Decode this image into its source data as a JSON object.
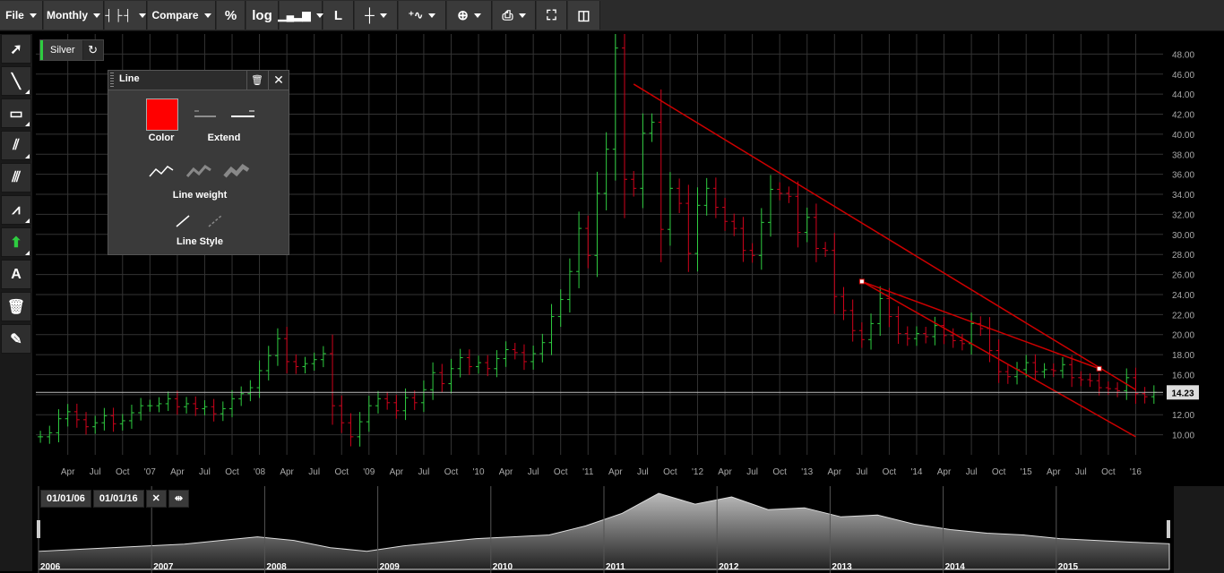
{
  "toolbar": {
    "file": "File",
    "period": "Monthly",
    "compare": "Compare",
    "percent": "%",
    "log": "log",
    "line_mode": "L"
  },
  "symbol": {
    "name": "Silver"
  },
  "line_panel": {
    "title": "Line",
    "color_label": "Color",
    "extend_label": "Extend",
    "weight_label": "Line weight",
    "style_label": "Line Style",
    "color": "#ff0000"
  },
  "left_tools": [
    "pointer-icon",
    "line-tool-icon",
    "rectangle-icon",
    "fan-icon",
    "channel-icon",
    "fib-icon",
    "arrow-icon",
    "text-icon",
    "trash-icon",
    "eraser-icon"
  ],
  "navigator": {
    "start": "01/01/06",
    "end": "01/01/16",
    "years": [
      "2006",
      "2007",
      "2008",
      "2009",
      "2010",
      "2011",
      "2012",
      "2013",
      "2014",
      "2015"
    ]
  },
  "colors": {
    "up": "#2ecc40",
    "down": "#d0021b",
    "trend": "#cc0000",
    "grid": "#333333"
  },
  "chart_data": {
    "type": "ohlc",
    "title": "Silver",
    "period": "Monthly",
    "last_price": "14.23",
    "ylim": [
      8,
      50
    ],
    "y_ticks": [
      "10.00",
      "12.00",
      "14.00",
      "16.00",
      "18.00",
      "20.00",
      "22.00",
      "24.00",
      "26.00",
      "28.00",
      "30.00",
      "32.00",
      "34.00",
      "36.00",
      "38.00",
      "40.00",
      "42.00",
      "44.00",
      "46.00",
      "48.00"
    ],
    "x_labels": [
      "Apr",
      "Jul",
      "Oct",
      "'07",
      "Apr",
      "Jul",
      "Oct",
      "'08",
      "Apr",
      "Jul",
      "Oct",
      "'09",
      "Apr",
      "Jul",
      "Oct",
      "'10",
      "Apr",
      "Jul",
      "Oct",
      "'11",
      "Apr",
      "Jul",
      "Oct",
      "'12",
      "Apr",
      "Jul",
      "Oct",
      "'13",
      "Apr",
      "Jul",
      "Oct",
      "'14",
      "Apr",
      "Jul",
      "Oct",
      "'15",
      "Apr",
      "Jul",
      "Oct",
      "'16"
    ],
    "x_start": "2006-01",
    "closes": [
      9.8,
      10.2,
      11.6,
      12.3,
      11.5,
      10.8,
      11.2,
      11.9,
      11.1,
      11.4,
      12.2,
      12.9,
      12.9,
      13.1,
      13.6,
      12.8,
      13.1,
      12.6,
      12.8,
      12.1,
      12.6,
      13.6,
      14.1,
      14.7,
      16.4,
      17.9,
      19.6,
      17.3,
      16.8,
      17.1,
      17.5,
      18.1,
      12.9,
      11.2,
      9.8,
      11.3,
      12.9,
      13.6,
      13.2,
      12.4,
      13.7,
      13.2,
      14.5,
      16.2,
      15.1,
      16.6,
      17.7,
      16.8,
      17.2,
      16.6,
      17.6,
      18.5,
      18.2,
      17.3,
      18.1,
      19.2,
      21.8,
      23.5,
      26.3,
      30.6,
      27.9,
      34.1,
      38.5,
      48.6,
      35.5,
      34.6,
      40.1,
      41.2,
      30.5,
      34.6,
      33.1,
      28.1,
      32.9,
      34.6,
      32.7,
      31.3,
      30.6,
      28.4,
      27.9,
      31.2,
      34.5,
      34.1,
      33.8,
      30.2,
      31.7,
      28.6,
      28.4,
      23.8,
      22.4,
      20.4,
      19.5,
      21.1,
      23.6,
      21.8,
      20.1,
      19.6,
      20.1,
      19.8,
      20.9,
      19.9,
      19.4,
      19.1,
      21.1,
      20.6,
      18.4,
      16.3,
      15.8,
      16.5,
      17.2,
      16.3,
      16.5,
      16.4,
      17.0,
      15.7,
      15.5,
      15.4,
      14.7,
      14.6,
      14.4,
      15.7,
      14.1,
      13.8,
      14.23
    ],
    "trendlines": [
      {
        "from": [
          "2011-06",
          45.0
        ],
        "to": [
          "2016-01",
          14.5
        ]
      },
      {
        "from": [
          "2013-07",
          25.3
        ],
        "to": [
          "2016-01",
          9.8
        ]
      },
      {
        "from": [
          "2013-07",
          25.3
        ],
        "to": [
          "2015-09",
          16.6
        ]
      }
    ],
    "navigator_values": [
      10,
      11,
      12,
      13,
      14,
      16,
      18,
      16,
      12,
      10,
      13,
      15,
      17,
      18,
      19,
      24,
      31,
      42,
      36,
      40,
      33,
      34,
      29,
      30,
      25,
      22,
      20,
      19,
      17,
      16,
      15,
      14.2
    ]
  }
}
